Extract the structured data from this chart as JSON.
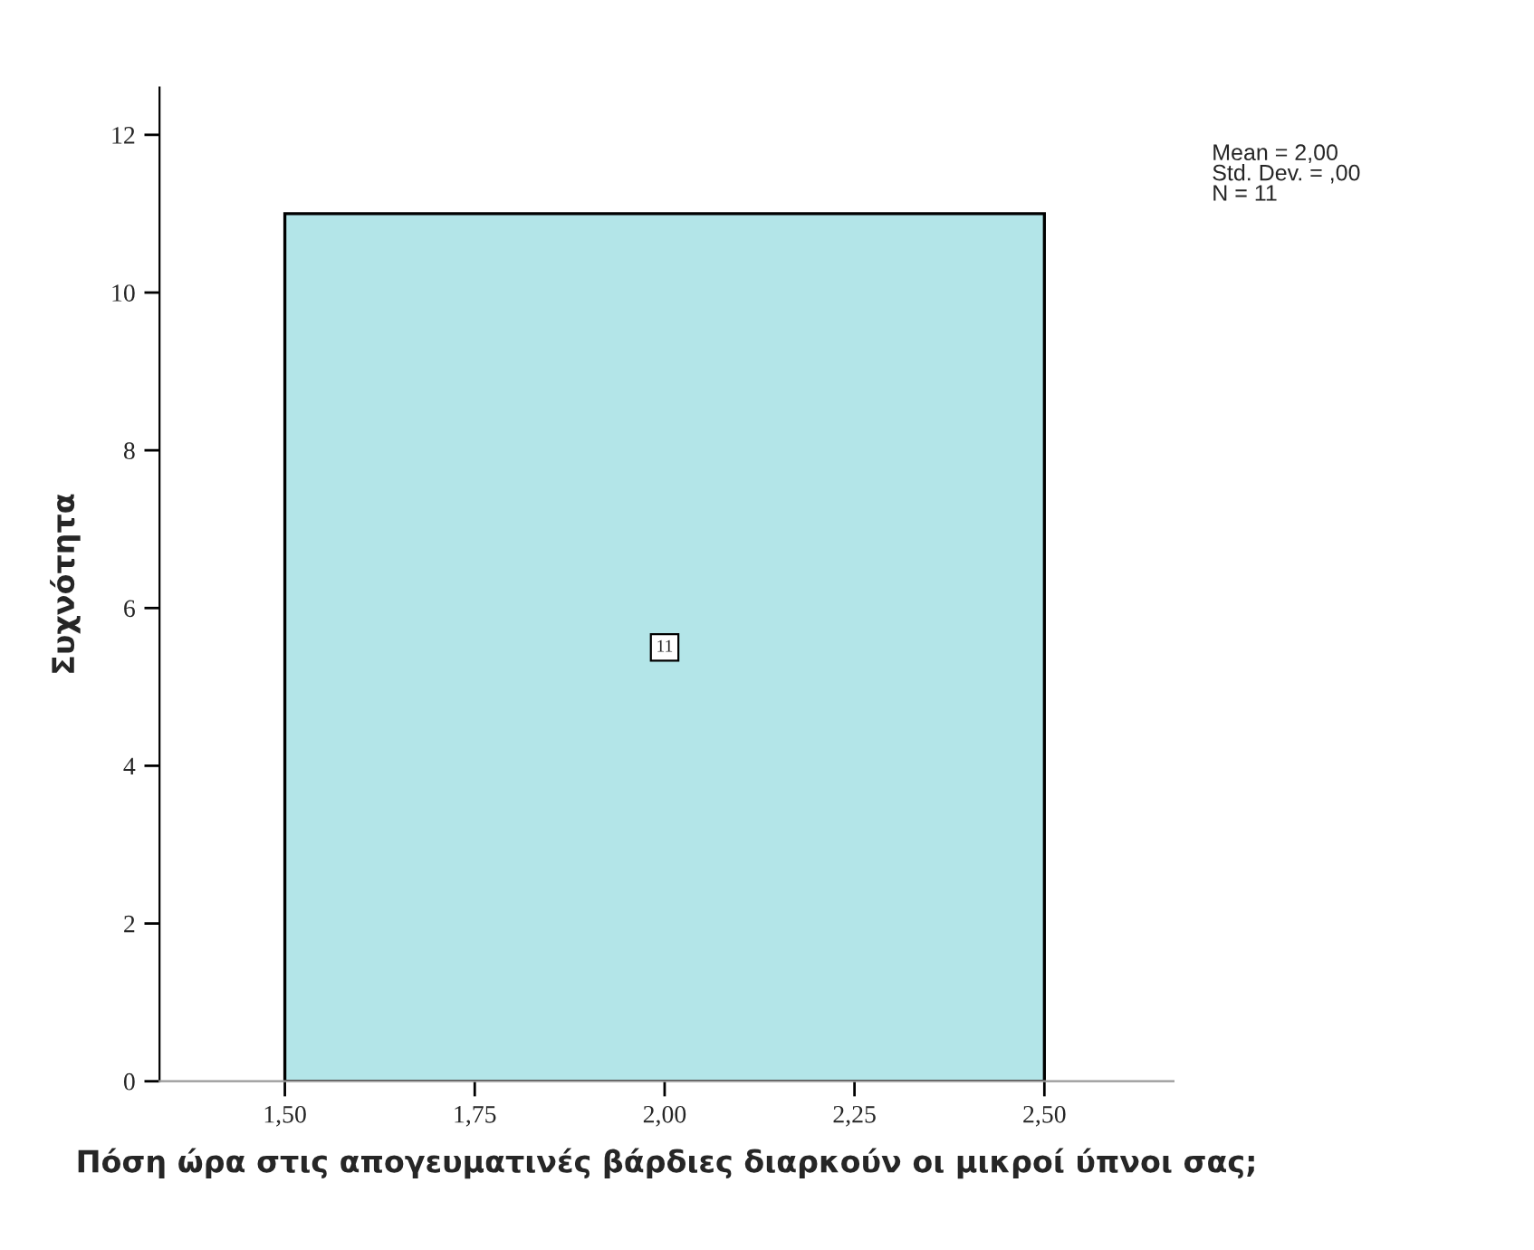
{
  "chart_data": {
    "type": "histogram",
    "xlabel": "Πόση ώρα στις απογευματινές βάρδιες διαρκούν οι μικροί ύπνοι σας;",
    "ylabel": "Συχνότητα",
    "bins": [
      1.5,
      2.5
    ],
    "values": [
      11
    ],
    "color": "#b3e5e8",
    "data_labels": true,
    "xlim": [
      1.335,
      2.67
    ],
    "xticks": [
      {
        "value": 1.5,
        "label": "1,50"
      },
      {
        "value": 1.75,
        "label": "1,75"
      },
      {
        "value": 2.0,
        "label": "2,00"
      },
      {
        "value": 2.25,
        "label": "2,25"
      },
      {
        "value": 2.5,
        "label": "2,50"
      }
    ],
    "ylim": [
      0,
      12.6
    ],
    "yticks": [
      0,
      2,
      4,
      6,
      8,
      10,
      12
    ],
    "grid": false,
    "annotations": [
      "Mean = 2,00\nStd. Dev. = ,00\nN = 11"
    ]
  }
}
